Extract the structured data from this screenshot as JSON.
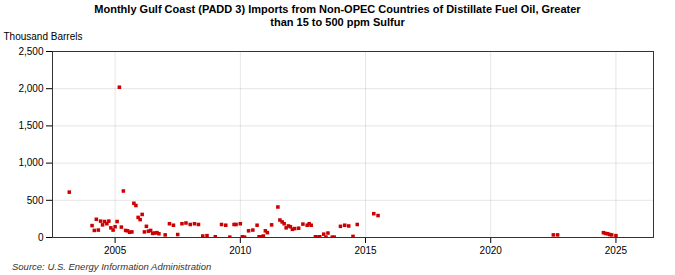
{
  "chart_data": {
    "type": "scatter",
    "title": "Monthly Gulf Coast (PADD 3) Imports from Non-OPEC Countries of Distillate Fuel Oil, Greater\nthan 15 to 500 ppm Sulfur",
    "ylabel": "Thousand Barrels",
    "annotations": [
      "Source: U.S. Energy Information Administration"
    ],
    "color": "#cc0000",
    "marker": "square",
    "grid": true,
    "xlim": [
      2002.5,
      2026.5
    ],
    "xticks": [
      2005,
      2010,
      2015,
      2020,
      2025
    ],
    "ylim": [
      0,
      2500
    ],
    "yticks": [
      0,
      500,
      {
        "value": 1000,
        "label": "1,000"
      },
      {
        "value": 1500,
        "label": "1,500"
      },
      {
        "value": 2000,
        "label": "2,000"
      },
      {
        "value": 2500,
        "label": "2,500"
      }
    ],
    "x": [
      2003.17,
      2004.08,
      2004.17,
      2004.25,
      2004.33,
      2004.42,
      2004.5,
      2004.58,
      2004.67,
      2004.75,
      2004.83,
      2004.92,
      2005.0,
      2005.08,
      2005.17,
      2005.25,
      2005.33,
      2005.42,
      2005.5,
      2005.58,
      2005.67,
      2005.75,
      2005.83,
      2005.92,
      2006.0,
      2006.08,
      2006.17,
      2006.25,
      2006.33,
      2006.42,
      2006.5,
      2006.58,
      2006.67,
      2006.75,
      2007.0,
      2007.17,
      2007.33,
      2007.5,
      2007.67,
      2007.83,
      2008.0,
      2008.17,
      2008.33,
      2008.5,
      2008.67,
      2009.0,
      2009.25,
      2009.42,
      2009.58,
      2009.75,
      2009.83,
      2010.0,
      2010.08,
      2010.17,
      2010.33,
      2010.5,
      2010.67,
      2010.75,
      2010.83,
      2010.92,
      2011.0,
      2011.08,
      2011.25,
      2011.5,
      2011.58,
      2011.67,
      2011.75,
      2011.83,
      2011.92,
      2012.0,
      2012.08,
      2012.17,
      2012.33,
      2012.5,
      2012.67,
      2012.75,
      2012.83,
      2013.0,
      2013.08,
      2013.17,
      2013.33,
      2013.42,
      2013.5,
      2013.67,
      2013.75,
      2014.0,
      2014.17,
      2014.33,
      2014.5,
      2014.67,
      2015.33,
      2015.5,
      2022.5,
      2022.67,
      2024.5,
      2024.58,
      2024.67,
      2024.75,
      2024.83,
      2025.0
    ],
    "values": [
      610,
      160,
      95,
      245,
      100,
      220,
      170,
      215,
      185,
      220,
      130,
      100,
      145,
      215,
      2020,
      140,
      625,
      95,
      90,
      70,
      75,
      460,
      430,
      270,
      240,
      310,
      75,
      150,
      85,
      95,
      55,
      60,
      65,
      50,
      35,
      185,
      165,
      40,
      185,
      195,
      175,
      185,
      175,
      20,
      25,
      10,
      175,
      165,
      5,
      175,
      175,
      185,
      10,
      5,
      90,
      100,
      165,
      10,
      10,
      20,
      90,
      65,
      170,
      410,
      235,
      210,
      185,
      130,
      155,
      145,
      110,
      120,
      125,
      180,
      165,
      185,
      165,
      10,
      5,
      10,
      45,
      5,
      60,
      5,
      5,
      150,
      165,
      155,
      15,
      175,
      320,
      295,
      35,
      35,
      65,
      55,
      50,
      40,
      35,
      25
    ]
  }
}
